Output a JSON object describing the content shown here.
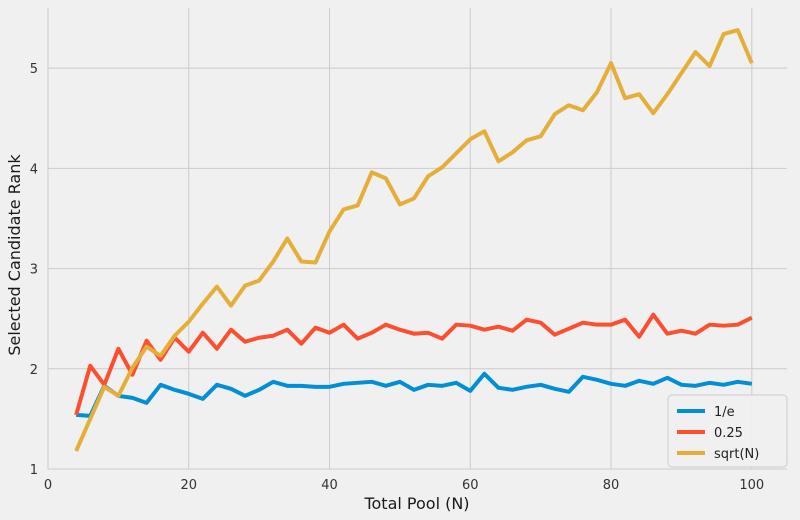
{
  "chart_data": {
    "type": "line",
    "title": "",
    "xlabel": "Total Pool (N)",
    "ylabel": "Selected Candidate Rank",
    "xlim": [
      0,
      105
    ],
    "ylim": [
      1,
      5.6
    ],
    "xticks": [
      0,
      20,
      40,
      60,
      80,
      100
    ],
    "yticks": [
      1,
      2,
      3,
      4,
      5
    ],
    "grid": true,
    "legend_position": "lower-right",
    "x": [
      4,
      6,
      8,
      10,
      12,
      14,
      16,
      18,
      20,
      22,
      24,
      26,
      28,
      30,
      32,
      34,
      36,
      38,
      40,
      42,
      44,
      46,
      48,
      50,
      52,
      54,
      56,
      58,
      60,
      62,
      64,
      66,
      68,
      70,
      72,
      74,
      76,
      78,
      80,
      82,
      84,
      86,
      88,
      90,
      92,
      94,
      96,
      98,
      100
    ],
    "series": [
      {
        "name": "1/e",
        "color": "#008fd5",
        "values": [
          1.54,
          1.53,
          1.83,
          1.73,
          1.71,
          1.66,
          1.84,
          1.79,
          1.75,
          1.7,
          1.84,
          1.8,
          1.73,
          1.79,
          1.87,
          1.83,
          1.83,
          1.82,
          1.82,
          1.85,
          1.86,
          1.87,
          1.83,
          1.87,
          1.79,
          1.84,
          1.83,
          1.86,
          1.78,
          1.95,
          1.81,
          1.79,
          1.82,
          1.84,
          1.8,
          1.77,
          1.92,
          1.89,
          1.85,
          1.83,
          1.88,
          1.85,
          1.91,
          1.84,
          1.83,
          1.86,
          1.84,
          1.87,
          1.85
        ]
      },
      {
        "name": "0.25",
        "color": "#fc4f30",
        "values": [
          1.54,
          2.03,
          1.84,
          2.2,
          1.94,
          2.28,
          2.09,
          2.31,
          2.17,
          2.36,
          2.2,
          2.39,
          2.27,
          2.31,
          2.33,
          2.39,
          2.25,
          2.41,
          2.36,
          2.44,
          2.3,
          2.36,
          2.44,
          2.39,
          2.35,
          2.36,
          2.3,
          2.44,
          2.43,
          2.39,
          2.42,
          2.38,
          2.49,
          2.46,
          2.34,
          2.4,
          2.46,
          2.44,
          2.44,
          2.49,
          2.32,
          2.54,
          2.35,
          2.38,
          2.35,
          2.44,
          2.43,
          2.44,
          2.51
        ]
      },
      {
        "name": "sqrt(N)",
        "color": "#e5ae38",
        "values": [
          1.18,
          1.5,
          1.82,
          1.73,
          2.01,
          2.22,
          2.13,
          2.33,
          2.47,
          2.65,
          2.82,
          2.63,
          2.83,
          2.88,
          3.07,
          3.3,
          3.07,
          3.06,
          3.37,
          3.59,
          3.63,
          3.96,
          3.9,
          3.64,
          3.7,
          3.92,
          4.01,
          4.15,
          4.29,
          4.37,
          4.07,
          4.16,
          4.28,
          4.32,
          4.54,
          4.63,
          4.58,
          4.76,
          5.05,
          4.7,
          4.74,
          4.55,
          4.74,
          4.95,
          5.16,
          5.02,
          5.34,
          5.38,
          5.05
        ]
      }
    ]
  }
}
